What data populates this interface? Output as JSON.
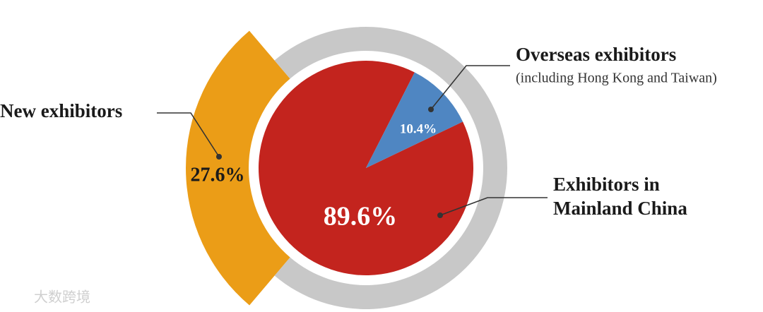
{
  "chart_data": [
    {
      "type": "pie",
      "categories": [
        "Exhibitors in Mainland China",
        "Overseas exhibitors"
      ],
      "note": "(including Hong Kong and Taiwan)",
      "series": [
        {
          "colors": [
            "#c3241e",
            "#4f86c2"
          ],
          "values": [
            89.6,
            10.4
          ],
          "value_labels": [
            "89.6%",
            "10.4%"
          ]
        }
      ]
    },
    {
      "type": "ring",
      "categories": [
        "New exhibitors",
        null
      ],
      "series": [
        {
          "colors": [
            "#eb9d17",
            "#c8c8c8"
          ],
          "values": [
            27.6,
            72.4
          ],
          "value_labels": [
            "27.6%",
            null
          ]
        }
      ]
    }
  ],
  "watermark": "大数跨境"
}
